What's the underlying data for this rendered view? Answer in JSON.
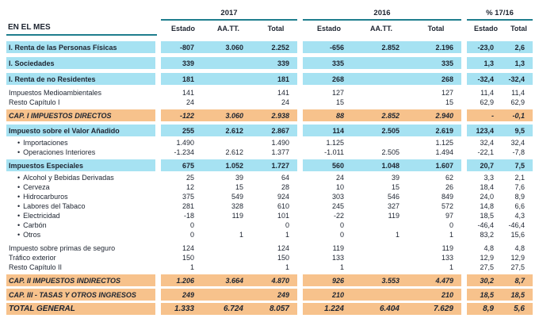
{
  "table": {
    "row_header": "EN EL MES",
    "year_groups": [
      {
        "label": "2017",
        "cols": [
          "Estado",
          "AA.TT.",
          "Total"
        ]
      },
      {
        "label": "2016",
        "cols": [
          "Estado",
          "AA.TT.",
          "Total"
        ]
      },
      {
        "label": "% 17/16",
        "cols": [
          "Estado",
          "Total"
        ]
      }
    ],
    "rows": [
      {
        "label": "I. Renta de las Personas Físicas",
        "style": "blue",
        "gap": 7,
        "values": [
          "-807",
          "3.060",
          "2.252",
          "-656",
          "2.852",
          "2.196",
          "-23,0",
          "2,6"
        ]
      },
      {
        "label": "I. Sociedades",
        "style": "blue",
        "gap": 5,
        "values": [
          "339",
          "",
          "339",
          "335",
          "",
          "335",
          "1,3",
          "1,3"
        ]
      },
      {
        "label": "I. Renta de no Residentes",
        "style": "blue",
        "gap": 5,
        "values": [
          "181",
          "",
          "181",
          "268",
          "",
          "268",
          "-32,4",
          "-32,4"
        ]
      },
      {
        "label": "Impuestos Medioambientales",
        "style": "plain",
        "gap": 4,
        "values": [
          "141",
          "",
          "141",
          "127",
          "",
          "127",
          "11,4",
          "11,4"
        ]
      },
      {
        "label": "Resto Capítulo I",
        "style": "plain",
        "gap": 0,
        "values": [
          "24",
          "",
          "24",
          "15",
          "",
          "15",
          "62,9",
          "62,9"
        ]
      },
      {
        "label": "CAP. I IMPUESTOS DIRECTOS",
        "style": "orange",
        "gap": 3,
        "values": [
          "-122",
          "3.060",
          "2.938",
          "88",
          "2.852",
          "2.940",
          "-",
          "-0,1"
        ]
      },
      {
        "label": "Impuesto sobre el Valor Añadido",
        "style": "blue",
        "gap": 4,
        "values": [
          "255",
          "2.612",
          "2.867",
          "114",
          "2.505",
          "2.619",
          "123,4",
          "9,5"
        ]
      },
      {
        "label": "Importaciones",
        "style": "sub",
        "gap": 2,
        "values": [
          "1.490",
          "",
          "1.490",
          "1.125",
          "",
          "1.125",
          "32,4",
          "32,4"
        ]
      },
      {
        "label": "Operaciones Interiores",
        "style": "sub",
        "gap": 0,
        "values": [
          "-1.234",
          "2.612",
          "1.377",
          "-1.011",
          "2.505",
          "1.494",
          "-22,1",
          "-7,8"
        ]
      },
      {
        "label": "Impuestos Especiales",
        "style": "blue",
        "gap": 3,
        "values": [
          "675",
          "1.052",
          "1.727",
          "560",
          "1.048",
          "1.607",
          "20,7",
          "7,5"
        ]
      },
      {
        "label": "Alcohol y Bebidas Derivadas",
        "style": "sub",
        "gap": 2,
        "values": [
          "25",
          "39",
          "64",
          "24",
          "39",
          "62",
          "3,3",
          "2,1"
        ]
      },
      {
        "label": "Cerveza",
        "style": "sub",
        "gap": 0,
        "values": [
          "12",
          "15",
          "28",
          "10",
          "15",
          "26",
          "18,4",
          "7,6"
        ]
      },
      {
        "label": "Hidrocarburos",
        "style": "sub",
        "gap": 0,
        "values": [
          "375",
          "549",
          "924",
          "303",
          "546",
          "849",
          "24,0",
          "8,9"
        ]
      },
      {
        "label": "Labores del Tabaco",
        "style": "sub",
        "gap": 0,
        "values": [
          "281",
          "328",
          "610",
          "245",
          "327",
          "572",
          "14,8",
          "6,6"
        ]
      },
      {
        "label": "Electricidad",
        "style": "sub",
        "gap": 0,
        "values": [
          "-18",
          "119",
          "101",
          "-22",
          "119",
          "97",
          "18,5",
          "4,3"
        ]
      },
      {
        "label": "Carbón",
        "style": "sub",
        "gap": 0,
        "values": [
          "0",
          "",
          "0",
          "0",
          "",
          "0",
          "-46,4",
          "-46,4"
        ]
      },
      {
        "label": "Otros",
        "style": "sub",
        "gap": 0,
        "values": [
          "0",
          "1",
          "1",
          "0",
          "1",
          "1",
          "83,2",
          "15,6"
        ]
      },
      {
        "label": "Impuesto sobre primas de seguro",
        "style": "plain",
        "gap": 5,
        "values": [
          "124",
          "",
          "124",
          "119",
          "",
          "119",
          "4,8",
          "4,8"
        ]
      },
      {
        "label": "Tráfico exterior",
        "style": "plain",
        "gap": 0,
        "values": [
          "150",
          "",
          "150",
          "133",
          "",
          "133",
          "12,9",
          "12,9"
        ]
      },
      {
        "label": "Resto Capítulo II",
        "style": "plain",
        "gap": 0,
        "values": [
          "1",
          "",
          "1",
          "1",
          "",
          "1",
          "27,5",
          "27,5"
        ]
      },
      {
        "label": "CAP. II IMPUESTOS INDIRECTOS",
        "style": "orange",
        "gap": 3,
        "values": [
          "1.206",
          "3.664",
          "4.870",
          "926",
          "3.553",
          "4.479",
          "30,2",
          "8,7"
        ]
      },
      {
        "label": "CAP. III - TASAS Y OTROS INGRESOS",
        "style": "orange",
        "gap": 3,
        "values": [
          "249",
          "",
          "249",
          "210",
          "",
          "210",
          "18,5",
          "18,5"
        ]
      },
      {
        "label": "TOTAL GENERAL",
        "style": "total",
        "gap": 3,
        "values": [
          "1.333",
          "6.724",
          "8.057",
          "1.224",
          "6.404",
          "7.629",
          "8,9",
          "5,6"
        ]
      }
    ]
  },
  "colors": {
    "band_blue": "#a6e2f2",
    "band_orange": "#f7c28c",
    "line_teal": "#1f7e8e"
  }
}
